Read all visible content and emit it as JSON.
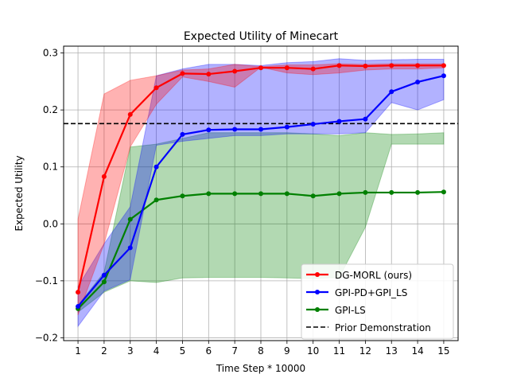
{
  "chart_data": {
    "type": "line",
    "title": "Expected Utility of Minecart",
    "xlabel": "Time Step * 10000",
    "ylabel": "Expected Utility",
    "x": [
      1,
      2,
      3,
      4,
      5,
      6,
      7,
      8,
      9,
      10,
      11,
      12,
      13,
      14,
      15
    ],
    "xlim": [
      0.45,
      15.55
    ],
    "ylim": [
      -0.205,
      0.312
    ],
    "xticks": [
      "1",
      "2",
      "3",
      "4",
      "5",
      "6",
      "7",
      "8",
      "9",
      "10",
      "11",
      "12",
      "13",
      "14",
      "15"
    ],
    "yticks": [
      -0.2,
      -0.1,
      0.0,
      0.1,
      0.2,
      0.3
    ],
    "ytick_labels": [
      "−0.2",
      "−0.1",
      "0.0",
      "0.1",
      "0.2",
      "0.3"
    ],
    "grid": true,
    "legend_position": "lower-right",
    "series": [
      {
        "name": "GPI-LS",
        "color": "#008000",
        "values": [
          -0.149,
          -0.102,
          0.008,
          0.042,
          0.049,
          0.053,
          0.053,
          0.053,
          0.053,
          0.049,
          0.053,
          0.055,
          0.055,
          0.055,
          0.056
        ],
        "lower": [
          -0.155,
          -0.12,
          -0.1,
          -0.103,
          -0.095,
          -0.094,
          -0.094,
          -0.094,
          -0.095,
          -0.096,
          -0.094,
          -0.006,
          0.14,
          0.14,
          0.14
        ],
        "upper": [
          -0.143,
          -0.085,
          0.135,
          0.14,
          0.15,
          0.16,
          0.16,
          0.16,
          0.16,
          0.158,
          0.155,
          0.16,
          0.157,
          0.158,
          0.16
        ]
      },
      {
        "name": "GPI-PD+GPI_LS",
        "color": "#0000ff",
        "values": [
          -0.145,
          -0.09,
          -0.042,
          0.1,
          0.157,
          0.165,
          0.166,
          0.166,
          0.17,
          0.175,
          0.18,
          0.184,
          0.232,
          0.249,
          0.26
        ],
        "lower": [
          -0.18,
          -0.118,
          -0.098,
          0.138,
          0.145,
          0.15,
          0.155,
          0.155,
          0.158,
          0.158,
          0.158,
          0.16,
          0.213,
          0.2,
          0.218
        ],
        "upper": [
          -0.11,
          -0.035,
          0.03,
          0.26,
          0.272,
          0.28,
          0.28,
          0.278,
          0.283,
          0.285,
          0.29,
          0.287,
          0.288,
          0.289,
          0.289
        ]
      },
      {
        "name": "DG-MORL (ours)",
        "color": "#ff0000",
        "values": [
          -0.12,
          0.083,
          0.192,
          0.239,
          0.264,
          0.263,
          0.268,
          0.274,
          0.274,
          0.272,
          0.278,
          0.277,
          0.278,
          0.278,
          0.278
        ],
        "lower": [
          -0.16,
          -0.035,
          0.135,
          0.21,
          0.258,
          0.25,
          0.24,
          0.275,
          0.265,
          0.262,
          0.265,
          0.27,
          0.272,
          0.272,
          0.274
        ],
        "upper": [
          0.008,
          0.228,
          0.252,
          0.26,
          0.27,
          0.272,
          0.28,
          0.276,
          0.279,
          0.279,
          0.281,
          0.28,
          0.281,
          0.281,
          0.281
        ]
      }
    ],
    "reference_line": {
      "name": "Prior Demonstration",
      "value": 0.176,
      "color": "#000000",
      "style": "dashed"
    },
    "legend_entries": [
      {
        "label": "DG-MORL (ours)",
        "color": "#ff0000",
        "style": "line-marker"
      },
      {
        "label": "GPI-PD+GPI_LS",
        "color": "#0000ff",
        "style": "line-marker"
      },
      {
        "label": "GPI-LS",
        "color": "#008000",
        "style": "line-marker"
      },
      {
        "label": "Prior Demonstration",
        "color": "#000000",
        "style": "dashed"
      }
    ]
  }
}
